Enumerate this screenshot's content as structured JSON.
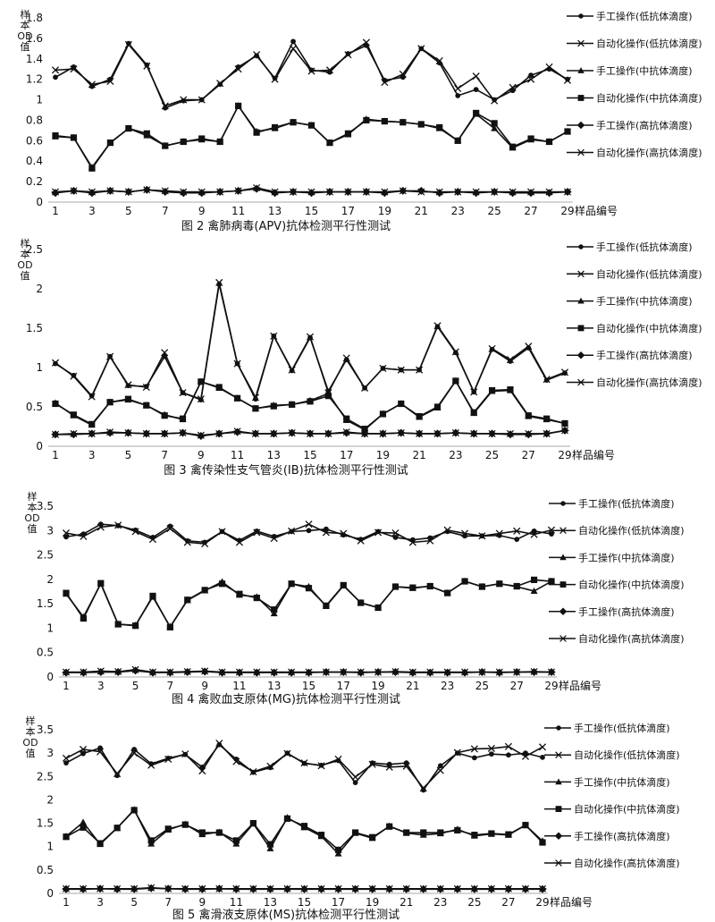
{
  "legend_labels": [
    "手工操作(低抗体滴度)",
    "自动化操作(低抗体滴度)",
    "手工操作(中抗体滴度)",
    "自动化操作(中抗体滴度)",
    "手工操作(高抗体滴度)",
    "自动化操作(高抗体滴度)"
  ],
  "y_axis_label": [
    "样",
    "本",
    "OD",
    "值"
  ],
  "x_axis_suffix": "样品编号",
  "chart_data": [
    {
      "type": "line",
      "title": "图 2 禽肺病毒(APV)抗体检测平行性测试",
      "ylim": [
        0,
        1.8
      ],
      "yticks": [
        "0",
        "0.2",
        "0.4",
        "0.6",
        "0.8",
        "1",
        "1.2",
        "1.4",
        "1.6",
        "1.8"
      ],
      "x": [
        1,
        2,
        3,
        4,
        5,
        6,
        7,
        8,
        9,
        10,
        11,
        12,
        13,
        14,
        15,
        16,
        17,
        18,
        19,
        20,
        21,
        22,
        23,
        24,
        25,
        26,
        27,
        28,
        29
      ],
      "xticks": [
        "1",
        "3",
        "5",
        "7",
        "9",
        "11",
        "13",
        "15",
        "17",
        "19",
        "21",
        "23",
        "25",
        "27",
        "29"
      ],
      "series": [
        {
          "name": "手工操作(低抗体滴度)",
          "marker": "circle",
          "values": [
            1.22,
            1.32,
            1.13,
            1.2,
            1.55,
            1.34,
            0.92,
            0.99,
            1.0,
            1.15,
            1.32,
            1.43,
            1.21,
            1.57,
            1.29,
            1.27,
            1.45,
            1.53,
            1.19,
            1.22,
            1.5,
            1.36,
            1.04,
            1.1,
            1.0,
            1.09,
            1.24,
            1.3,
            1.2
          ]
        },
        {
          "name": "自动化操作(低抗体滴度)",
          "marker": "x",
          "values": [
            1.29,
            1.3,
            1.15,
            1.18,
            1.54,
            1.33,
            0.94,
            1.0,
            1.0,
            1.16,
            1.3,
            1.44,
            1.2,
            1.5,
            1.28,
            1.29,
            1.44,
            1.56,
            1.17,
            1.25,
            1.5,
            1.38,
            1.11,
            1.23,
            0.99,
            1.12,
            1.2,
            1.32,
            1.19
          ]
        },
        {
          "name": "手工操作(中抗体滴度)",
          "marker": "triangle",
          "values": [
            0.64,
            0.63,
            0.34,
            0.58,
            0.72,
            0.65,
            0.55,
            0.59,
            0.61,
            0.59,
            0.94,
            0.69,
            0.72,
            0.78,
            0.75,
            0.58,
            0.66,
            0.81,
            0.79,
            0.78,
            0.76,
            0.72,
            0.6,
            0.86,
            0.72,
            0.53,
            0.61,
            0.59,
            0.69
          ]
        },
        {
          "name": "自动化操作(中抗体滴度)",
          "marker": "square",
          "values": [
            0.65,
            0.63,
            0.33,
            0.58,
            0.72,
            0.67,
            0.55,
            0.59,
            0.62,
            0.59,
            0.94,
            0.68,
            0.73,
            0.78,
            0.75,
            0.58,
            0.67,
            0.8,
            0.79,
            0.78,
            0.76,
            0.73,
            0.6,
            0.87,
            0.77,
            0.54,
            0.62,
            0.59,
            0.69
          ]
        },
        {
          "name": "手工操作(高抗体滴度)",
          "marker": "diamond",
          "values": [
            0.09,
            0.11,
            0.09,
            0.11,
            0.1,
            0.12,
            0.1,
            0.09,
            0.09,
            0.1,
            0.11,
            0.13,
            0.09,
            0.1,
            0.09,
            0.1,
            0.1,
            0.1,
            0.09,
            0.11,
            0.11,
            0.09,
            0.1,
            0.09,
            0.1,
            0.09,
            0.09,
            0.09,
            0.1
          ]
        },
        {
          "name": "自动化操作(高抗体滴度)",
          "marker": "star",
          "values": [
            0.1,
            0.11,
            0.1,
            0.11,
            0.1,
            0.12,
            0.11,
            0.1,
            0.1,
            0.1,
            0.11,
            0.14,
            0.1,
            0.1,
            0.1,
            0.1,
            0.1,
            0.1,
            0.1,
            0.11,
            0.1,
            0.1,
            0.1,
            0.1,
            0.1,
            0.1,
            0.1,
            0.1,
            0.1
          ]
        }
      ]
    },
    {
      "type": "line",
      "title": "图 3 禽传染性支气管炎(IB)抗体检测平行性测试",
      "ylim": [
        0,
        2.5
      ],
      "yticks": [
        "0",
        "0.5",
        "1",
        "1.5",
        "2",
        "2.5"
      ],
      "x": [
        1,
        2,
        3,
        4,
        5,
        6,
        7,
        8,
        9,
        10,
        11,
        12,
        13,
        14,
        15,
        16,
        17,
        18,
        19,
        20,
        21,
        22,
        23,
        24,
        25,
        26,
        27,
        28,
        29
      ],
      "xticks": [
        "1",
        "3",
        "5",
        "7",
        "9",
        "11",
        "13",
        "15",
        "17",
        "19",
        "21",
        "23",
        "25",
        "27",
        "29"
      ],
      "series": [
        {
          "name": "手工操作(低抗体滴度)",
          "marker": "circle",
          "values": [
            1.05,
            0.9,
            0.64,
            1.14,
            0.77,
            0.76,
            1.14,
            0.68,
            0.59,
            2.06,
            1.05,
            0.6,
            1.4,
            0.96,
            1.38,
            0.7,
            1.1,
            0.74,
            0.99,
            0.97,
            0.97,
            1.52,
            1.19,
            0.69,
            1.23,
            1.08,
            1.25,
            0.84,
            0.93
          ]
        },
        {
          "name": "自动化操作(低抗体滴度)",
          "marker": "x",
          "values": [
            1.06,
            0.89,
            0.63,
            1.14,
            0.78,
            0.75,
            1.19,
            0.68,
            0.6,
            2.08,
            1.05,
            0.62,
            1.4,
            0.97,
            1.39,
            0.68,
            1.12,
            0.74,
            0.99,
            0.97,
            0.97,
            1.53,
            1.2,
            0.69,
            1.24,
            1.1,
            1.27,
            0.85,
            0.94
          ]
        },
        {
          "name": "手工操作(中抗体滴度)",
          "marker": "triangle",
          "values": [
            0.55,
            0.39,
            0.27,
            0.56,
            0.59,
            0.52,
            0.4,
            0.34,
            0.82,
            0.74,
            0.61,
            0.48,
            0.52,
            0.53,
            0.58,
            0.67,
            0.33,
            0.21,
            0.41,
            0.54,
            0.37,
            0.49,
            0.83,
            0.42,
            0.7,
            0.71,
            0.38,
            0.34,
            0.29
          ]
        },
        {
          "name": "自动化操作(中抗体滴度)",
          "marker": "square",
          "values": [
            0.54,
            0.4,
            0.28,
            0.56,
            0.6,
            0.52,
            0.39,
            0.35,
            0.82,
            0.75,
            0.61,
            0.48,
            0.51,
            0.53,
            0.57,
            0.64,
            0.35,
            0.22,
            0.41,
            0.54,
            0.38,
            0.5,
            0.83,
            0.43,
            0.71,
            0.72,
            0.39,
            0.35,
            0.29
          ]
        },
        {
          "name": "手工操作(高抗体滴度)",
          "marker": "diamond",
          "values": [
            0.15,
            0.15,
            0.16,
            0.17,
            0.17,
            0.16,
            0.16,
            0.17,
            0.13,
            0.16,
            0.18,
            0.16,
            0.16,
            0.17,
            0.16,
            0.16,
            0.17,
            0.16,
            0.16,
            0.17,
            0.16,
            0.16,
            0.17,
            0.16,
            0.16,
            0.15,
            0.15,
            0.16,
            0.2
          ]
        },
        {
          "name": "自动化操作(高抗体滴度)",
          "marker": "star",
          "values": [
            0.15,
            0.16,
            0.16,
            0.18,
            0.17,
            0.16,
            0.16,
            0.17,
            0.14,
            0.16,
            0.19,
            0.16,
            0.16,
            0.17,
            0.16,
            0.16,
            0.18,
            0.16,
            0.16,
            0.17,
            0.16,
            0.16,
            0.17,
            0.16,
            0.16,
            0.16,
            0.16,
            0.16,
            0.2
          ]
        }
      ]
    },
    {
      "type": "line",
      "title": "图 4 禽败血支原体(MG)抗体检测平行性测试",
      "ylim": [
        0,
        3.5
      ],
      "yticks": [
        "0",
        "0.5",
        "1",
        "1.5",
        "2",
        "2.5",
        "3",
        "3.5"
      ],
      "x": [
        1,
        2,
        3,
        4,
        5,
        6,
        7,
        8,
        9,
        10,
        11,
        12,
        13,
        14,
        15,
        16,
        17,
        18,
        19,
        20,
        21,
        22,
        23,
        24,
        25,
        26,
        27,
        28,
        29
      ],
      "xticks": [
        "1",
        "3",
        "5",
        "7",
        "9",
        "11",
        "13",
        "15",
        "17",
        "19",
        "21",
        "23",
        "25",
        "27",
        "29"
      ],
      "series": [
        {
          "name": "手工操作(低抗体滴度)",
          "marker": "circle",
          "values": [
            2.87,
            2.93,
            3.13,
            3.1,
            3.01,
            2.86,
            3.09,
            2.79,
            2.76,
            2.98,
            2.8,
            2.99,
            2.88,
            2.98,
            3.0,
            3.03,
            2.91,
            2.82,
            2.98,
            2.86,
            2.81,
            2.85,
            2.98,
            2.89,
            2.89,
            2.9,
            2.82,
            2.99,
            2.93
          ]
        },
        {
          "name": "自动化操作(低抗体滴度)",
          "marker": "x",
          "values": [
            2.95,
            2.88,
            3.07,
            3.11,
            2.98,
            2.82,
            3.04,
            2.76,
            2.73,
            2.98,
            2.76,
            2.96,
            2.84,
            2.99,
            3.13,
            2.96,
            2.94,
            2.79,
            2.96,
            2.95,
            2.76,
            2.79,
            3.01,
            2.94,
            2.89,
            2.94,
            2.99,
            2.92,
            3.01
          ]
        },
        {
          "name": "手工操作(中抗体滴度)",
          "marker": "triangle",
          "values": [
            1.7,
            1.23,
            1.91,
            1.08,
            1.06,
            1.64,
            1.03,
            1.57,
            1.77,
            1.95,
            1.68,
            1.64,
            1.3,
            1.91,
            1.85,
            1.45,
            1.87,
            1.52,
            1.42,
            1.85,
            1.82,
            1.86,
            1.72,
            1.96,
            1.85,
            1.91,
            1.85,
            1.76,
            1.96
          ]
        },
        {
          "name": "自动化操作(中抗体滴度)",
          "marker": "square",
          "values": [
            1.72,
            1.2,
            1.92,
            1.08,
            1.05,
            1.66,
            1.02,
            1.58,
            1.78,
            1.91,
            1.7,
            1.62,
            1.38,
            1.91,
            1.82,
            1.46,
            1.88,
            1.52,
            1.42,
            1.85,
            1.83,
            1.86,
            1.72,
            1.96,
            1.85,
            1.91,
            1.86,
            1.99,
            1.96
          ]
        },
        {
          "name": "手工操作(高抗体滴度)",
          "marker": "diamond",
          "values": [
            0.09,
            0.09,
            0.1,
            0.1,
            0.13,
            0.09,
            0.09,
            0.1,
            0.11,
            0.09,
            0.09,
            0.09,
            0.09,
            0.09,
            0.09,
            0.1,
            0.1,
            0.09,
            0.1,
            0.1,
            0.09,
            0.09,
            0.09,
            0.09,
            0.1,
            0.09,
            0.1,
            0.1,
            0.1
          ]
        },
        {
          "name": "自动化操作(高抗体滴度)",
          "marker": "star",
          "values": [
            0.1,
            0.1,
            0.12,
            0.11,
            0.15,
            0.1,
            0.1,
            0.11,
            0.12,
            0.1,
            0.1,
            0.1,
            0.1,
            0.1,
            0.1,
            0.1,
            0.1,
            0.1,
            0.1,
            0.11,
            0.1,
            0.1,
            0.1,
            0.1,
            0.1,
            0.1,
            0.1,
            0.11,
            0.1
          ]
        }
      ]
    },
    {
      "type": "line",
      "title": "图 5 禽滑液支原体(MS)抗体检测平行性测试",
      "ylim": [
        0,
        3.5
      ],
      "yticks": [
        "0",
        "0.5",
        "1",
        "1.5",
        "2",
        "2.5",
        "3",
        "3.5"
      ],
      "x": [
        1,
        2,
        3,
        4,
        5,
        6,
        7,
        8,
        9,
        10,
        11,
        12,
        13,
        14,
        15,
        16,
        17,
        18,
        19,
        20,
        21,
        22,
        23,
        24,
        25,
        26,
        27,
        28,
        29
      ],
      "xticks": [
        "1",
        "3",
        "5",
        "7",
        "9",
        "11",
        "13",
        "15",
        "17",
        "19",
        "21",
        "23",
        "25",
        "27",
        "29"
      ],
      "series": [
        {
          "name": "手工操作(低抗体滴度)",
          "marker": "circle",
          "values": [
            2.79,
            2.99,
            3.11,
            2.52,
            3.08,
            2.77,
            2.89,
            2.97,
            2.7,
            3.18,
            2.87,
            2.59,
            2.69,
            3.0,
            2.78,
            2.74,
            2.84,
            2.37,
            2.79,
            2.76,
            2.79,
            2.21,
            2.73,
            3.0,
            2.9,
            2.98,
            2.96,
            3.0,
            2.91
          ]
        },
        {
          "name": "自动化操作(低抗体滴度)",
          "marker": "x",
          "values": [
            2.89,
            3.08,
            3.03,
            2.56,
            3.0,
            2.74,
            2.87,
            2.98,
            2.62,
            3.21,
            2.82,
            2.6,
            2.72,
            2.99,
            2.79,
            2.73,
            2.87,
            2.49,
            2.76,
            2.7,
            2.72,
            2.25,
            2.63,
            3.01,
            3.09,
            3.1,
            3.14,
            2.93,
            3.13
          ]
        },
        {
          "name": "手工操作(中抗体滴度)",
          "marker": "triangle",
          "values": [
            1.22,
            1.52,
            1.05,
            1.4,
            1.79,
            1.06,
            1.36,
            1.48,
            1.26,
            1.31,
            1.06,
            1.49,
            0.96,
            1.62,
            1.41,
            1.22,
            0.85,
            1.29,
            1.18,
            1.44,
            1.29,
            1.25,
            1.28,
            1.37,
            1.23,
            1.27,
            1.25,
            1.46,
            1.12
          ]
        },
        {
          "name": "自动化操作(中抗体滴度)",
          "marker": "square",
          "values": [
            1.21,
            1.41,
            1.07,
            1.4,
            1.78,
            1.13,
            1.38,
            1.47,
            1.3,
            1.3,
            1.13,
            1.5,
            1.05,
            1.6,
            1.44,
            1.25,
            0.93,
            1.3,
            1.2,
            1.43,
            1.3,
            1.3,
            1.3,
            1.35,
            1.25,
            1.28,
            1.26,
            1.46,
            1.09
          ]
        },
        {
          "name": "手工操作(高抗体滴度)",
          "marker": "diamond",
          "values": [
            0.09,
            0.09,
            0.1,
            0.09,
            0.09,
            0.11,
            0.1,
            0.09,
            0.09,
            0.1,
            0.09,
            0.09,
            0.09,
            0.09,
            0.09,
            0.09,
            0.09,
            0.09,
            0.09,
            0.09,
            0.09,
            0.09,
            0.09,
            0.09,
            0.09,
            0.09,
            0.09,
            0.09,
            0.09
          ]
        },
        {
          "name": "自动化操作(高抗体滴度)",
          "marker": "star",
          "values": [
            0.1,
            0.1,
            0.1,
            0.1,
            0.1,
            0.12,
            0.1,
            0.1,
            0.1,
            0.1,
            0.1,
            0.1,
            0.1,
            0.1,
            0.1,
            0.1,
            0.1,
            0.1,
            0.1,
            0.1,
            0.1,
            0.1,
            0.1,
            0.1,
            0.1,
            0.1,
            0.1,
            0.1,
            0.1
          ]
        }
      ]
    }
  ]
}
